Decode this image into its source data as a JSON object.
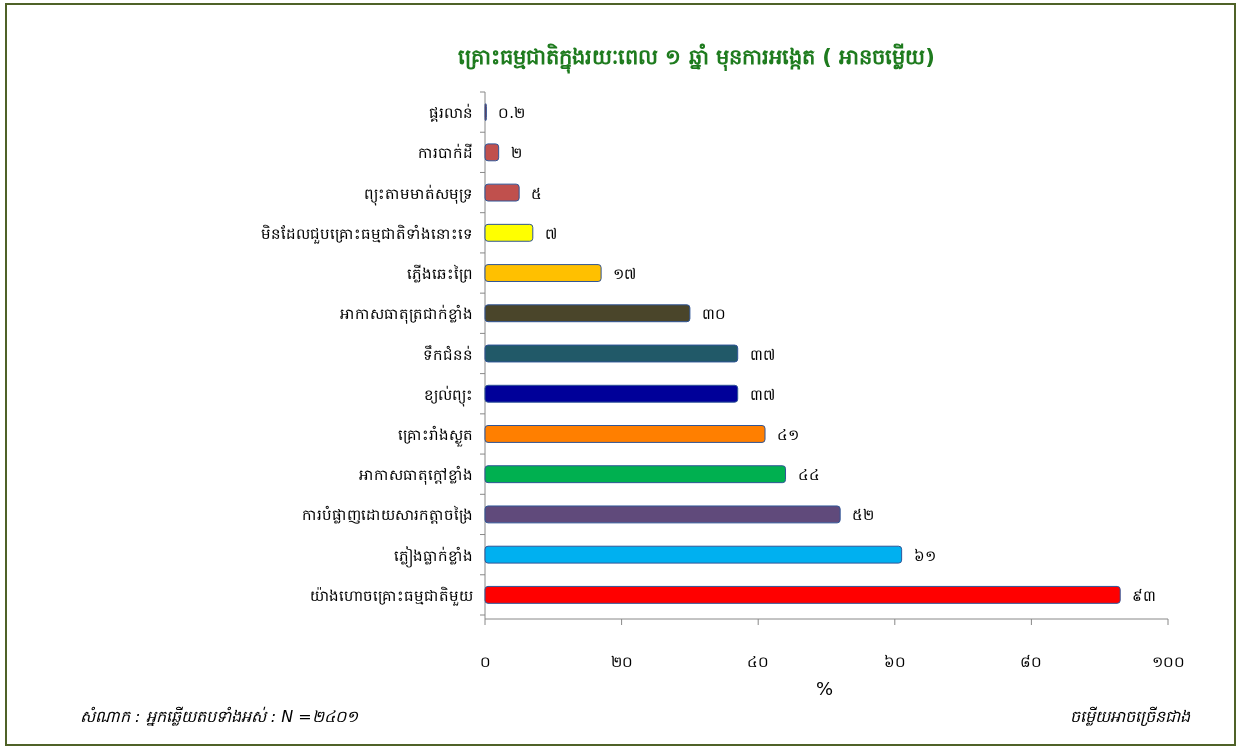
{
  "chart_data": {
    "type": "bar",
    "orientation": "horizontal",
    "title": "គ្រោះធម្មជាតិក្នុងរយៈពេល ១ ឆ្នាំ មុនការអង្កេត ( អានចម្លើយ)",
    "categories": [
      "ផ្គរលាន់",
      "ការបាក់ដី",
      "ព្យុះតាមមាត់សមុទ្រ",
      "មិនដែលជួបគ្រោះធម្មជាតិទាំងនោះទេ",
      "ភ្លើងឆេះព្រៃ",
      "អាកាសធាតុត្រជាក់ខ្លាំង",
      "ទឹកជំនន់",
      "ខ្យល់ព្យុះ",
      "គ្រោះរាំងស្ងួត",
      "អាកាសធាតុក្តៅខ្លាំង",
      "ការបំផ្លាញដោយសារកត្តាចង្រៃ",
      "ភ្លៀងធ្លាក់ខ្លាំង",
      "យ៉ាងហោចគ្រោះធម្មជាតិមួយ"
    ],
    "values": [
      0.2,
      2,
      5,
      7,
      17,
      30,
      37,
      37,
      41,
      44,
      52,
      61,
      93
    ],
    "value_labels": [
      "០.២",
      "២",
      "៥",
      "៧",
      "១៧",
      "៣០",
      "៣៧",
      "៣៧",
      "៤១",
      "៤៤",
      "៥២",
      "៦១",
      "៩៣"
    ],
    "colors": [
      "#8b2a2a",
      "#c0504d",
      "#c0504d",
      "#ffff00",
      "#ffc000",
      "#4a452a",
      "#215968",
      "#000099",
      "#ff7f00",
      "#00b050",
      "#604a7b",
      "#00b0f0",
      "#ff0000"
    ],
    "xlim": [
      0,
      100
    ],
    "xticks": [
      {
        "value": 0,
        "label": "០"
      },
      {
        "value": 20,
        "label": "២០"
      },
      {
        "value": 40,
        "label": "៤០"
      },
      {
        "value": 60,
        "label": "៦០"
      },
      {
        "value": 80,
        "label": "៨០"
      },
      {
        "value": 100,
        "label": "១០០"
      }
    ],
    "xlabel": "%",
    "annotations": [
      "សំណាក : អ្នកឆ្លើយតបទាំងអស់ : N =២៤០១",
      "ចម្លើយអាចច្រើនជាង"
    ]
  }
}
